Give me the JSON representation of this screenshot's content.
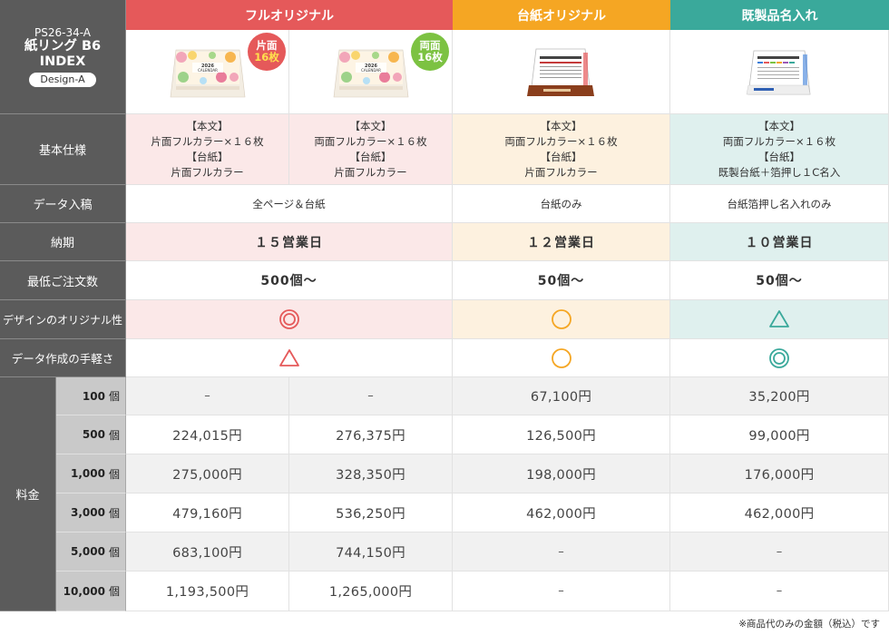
{
  "title": {
    "code": "PS26-34-A",
    "name": "紙リング B6",
    "index": "INDEX",
    "design": "Design-A"
  },
  "headers": {
    "full": "フルオリジナル",
    "base": "台紙オリジナル",
    "ready": "既製品名入れ"
  },
  "badges": {
    "single": {
      "line1": "片面",
      "line2": "16枚"
    },
    "double": {
      "line1": "両面",
      "line2": "16枚"
    }
  },
  "product_art": {
    "calendar_text": "2026 CALENDAR"
  },
  "rows": {
    "spec": "基本仕様",
    "data": "データ入稿",
    "delivery": "納期",
    "min_order": "最低ご注文数",
    "originality": "デザインのオリジナル性",
    "ease": "データ作成の手軽さ",
    "price": "料金"
  },
  "spec": {
    "full_single": {
      "h1": "【本文】",
      "l1": "片面フルカラー×１６枚",
      "h2": "【台紙】",
      "l2": "片面フルカラー"
    },
    "full_double": {
      "h1": "【本文】",
      "l1": "両面フルカラー×１６枚",
      "h2": "【台紙】",
      "l2": "片面フルカラー"
    },
    "base": {
      "h1": "【本文】",
      "l1": "両面フルカラー×１６枚",
      "h2": "【台紙】",
      "l2": "片面フルカラー"
    },
    "ready": {
      "h1": "【本文】",
      "l1": "両面フルカラー×１６枚",
      "h2": "【台紙】",
      "l2": "既製台紙＋箔押し１C名入"
    }
  },
  "data_entry": {
    "full": "全ページ＆台紙",
    "base": "台紙のみ",
    "ready": "台紙箔押し名入れのみ"
  },
  "delivery": {
    "full": "１５営業日",
    "base": "１２営業日",
    "ready": "１０営業日"
  },
  "min_order": {
    "full": "500個〜",
    "base": "50個〜",
    "ready": "50個〜"
  },
  "ratings": {
    "originality": {
      "full": "double-circle",
      "base": "circle",
      "ready": "triangle"
    },
    "ease": {
      "full": "triangle",
      "base": "circle",
      "ready": "double-circle"
    }
  },
  "colors": {
    "red": "#e5595a",
    "orange": "#f5a623",
    "teal": "#3aa99b"
  },
  "prices": [
    {
      "qty": "100",
      "unit": "個",
      "full_single": "–",
      "full_double": "–",
      "base": "67,100円",
      "ready": "35,200円"
    },
    {
      "qty": "500",
      "unit": "個",
      "full_single": "224,015円",
      "full_double": "276,375円",
      "base": "126,500円",
      "ready": "99,000円"
    },
    {
      "qty": "1,000",
      "unit": "個",
      "full_single": "275,000円",
      "full_double": "328,350円",
      "base": "198,000円",
      "ready": "176,000円"
    },
    {
      "qty": "3,000",
      "unit": "個",
      "full_single": "479,160円",
      "full_double": "536,250円",
      "base": "462,000円",
      "ready": "462,000円"
    },
    {
      "qty": "5,000",
      "unit": "個",
      "full_single": "683,100円",
      "full_double": "744,150円",
      "base": "–",
      "ready": "–"
    },
    {
      "qty": "10,000",
      "unit": "個",
      "full_single": "1,193,500円",
      "full_double": "1,265,000円",
      "base": "–",
      "ready": "–"
    }
  ],
  "note": "※商品代のみの金額（税込）です"
}
